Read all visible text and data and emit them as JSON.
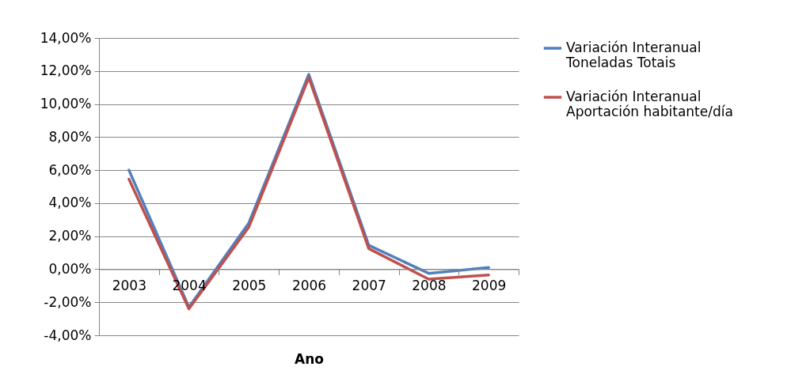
{
  "chart_data": {
    "type": "line",
    "xlabel": "Ano",
    "categories": [
      "2003",
      "2004",
      "2005",
      "2006",
      "2007",
      "2008",
      "2009"
    ],
    "series": [
      {
        "name": "Variación Interanual Toneladas Totais",
        "color": "#4f81bd",
        "values": [
          6.0,
          -2.3,
          2.8,
          11.8,
          1.45,
          -0.25,
          0.1
        ]
      },
      {
        "name": "Variación Interanual Aportación habitante/día",
        "color": "#c0504d",
        "values": [
          5.45,
          -2.4,
          2.55,
          11.6,
          1.25,
          -0.6,
          -0.35
        ]
      }
    ],
    "ylim": [
      -4,
      14
    ],
    "yticks": [
      {
        "value": -4,
        "label": "-4,00%"
      },
      {
        "value": -2,
        "label": "-2,00%"
      },
      {
        "value": 0,
        "label": "0,00%"
      },
      {
        "value": 2,
        "label": "2,00%"
      },
      {
        "value": 4,
        "label": "4,00%"
      },
      {
        "value": 6,
        "label": "6,00%"
      },
      {
        "value": 8,
        "label": "8,00%"
      },
      {
        "value": 10,
        "label": "10,00%"
      },
      {
        "value": 12,
        "label": "12,00%"
      },
      {
        "value": 14,
        "label": "14,00%"
      }
    ],
    "grid": "y",
    "legend": "right"
  }
}
